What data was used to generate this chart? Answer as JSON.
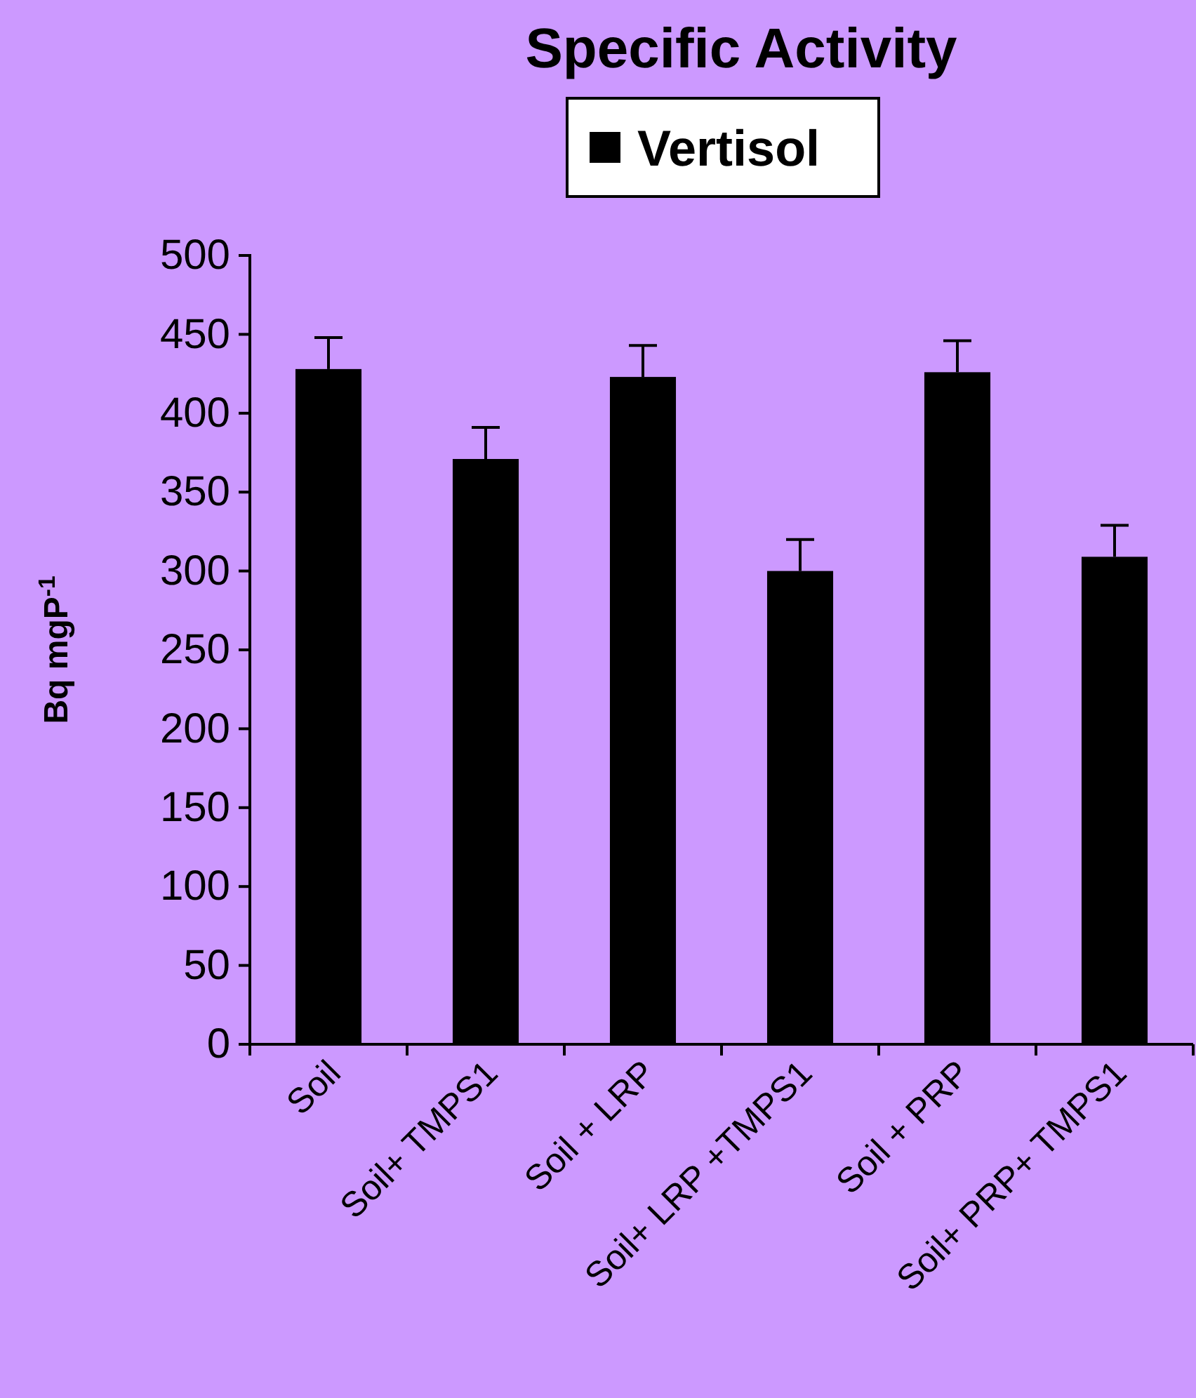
{
  "chart_data": {
    "type": "bar",
    "title": "Specific Activity",
    "ylabel": "Bq mgP$^{-1}$",
    "categories": [
      "Soil",
      "Soil+ TMPS1",
      "Soil + LRP",
      "Soil+ LRP +TMPS1",
      "Soil + PRP",
      "Soil+ PRP+ TMPS1"
    ],
    "series": [
      {
        "name": "Vertisol",
        "color": "#000000",
        "values": [
          428,
          371,
          423,
          300,
          426,
          309
        ],
        "errors": [
          20,
          20,
          20,
          20,
          20,
          20
        ]
      }
    ],
    "ylim": [
      0,
      500
    ],
    "yticks": [
      0,
      50,
      100,
      150,
      200,
      250,
      300,
      350,
      400,
      450,
      500
    ],
    "legend": "top",
    "grid": false
  }
}
